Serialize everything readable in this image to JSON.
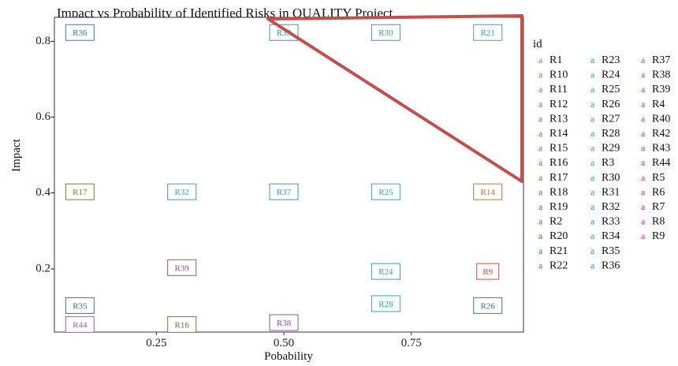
{
  "chart_data": {
    "type": "scatter",
    "title": "Impact vs Probability of Identified Risks in QUALITY Project",
    "xlabel": "Pobability",
    "ylabel": "Impact",
    "xlim": [
      0.05,
      0.97
    ],
    "ylim": [
      0.03,
      0.86
    ],
    "x_ticks": [
      {
        "value": 0.25,
        "label": "0.25"
      },
      {
        "value": 0.5,
        "label": "0.50"
      },
      {
        "value": 0.75,
        "label": "0.75"
      }
    ],
    "y_ticks": [
      {
        "value": 0.2,
        "label": "0.2-"
      },
      {
        "value": 0.4,
        "label": "0.4-"
      },
      {
        "value": 0.6,
        "label": "0.6-"
      },
      {
        "value": 0.8,
        "label": "0.8-"
      }
    ],
    "grid": false,
    "legend_title": "id",
    "legend_placement": "right",
    "legend_key_glyph": "a",
    "points": [
      {
        "id": "R36",
        "x": 0.1,
        "y": 0.82,
        "color": "#2f7fb6"
      },
      {
        "id": "R33",
        "x": 0.5,
        "y": 0.82,
        "color": "#3a8fc0"
      },
      {
        "id": "R30",
        "x": 0.7,
        "y": 0.82,
        "color": "#3b96c2"
      },
      {
        "id": "R21",
        "x": 0.9,
        "y": 0.82,
        "color": "#3aa3b0"
      },
      {
        "id": "R17",
        "x": 0.1,
        "y": 0.4,
        "color": "#6b7f3a"
      },
      {
        "id": "R32",
        "x": 0.3,
        "y": 0.4,
        "color": "#3a9ad0"
      },
      {
        "id": "R37",
        "x": 0.5,
        "y": 0.4,
        "color": "#3a93c8"
      },
      {
        "id": "R25",
        "x": 0.7,
        "y": 0.4,
        "color": "#35a5b4"
      },
      {
        "id": "R14",
        "x": 0.9,
        "y": 0.4,
        "color": "#c0703a"
      },
      {
        "id": "R39",
        "x": 0.3,
        "y": 0.2,
        "color": "#8a4fae"
      },
      {
        "id": "R24",
        "x": 0.7,
        "y": 0.19,
        "color": "#2fa2aa"
      },
      {
        "id": "R9",
        "x": 0.9,
        "y": 0.19,
        "color": "#d04a3a"
      },
      {
        "id": "R35",
        "x": 0.1,
        "y": 0.1,
        "color": "#2f6fa0"
      },
      {
        "id": "R28",
        "x": 0.7,
        "y": 0.105,
        "color": "#33a6b0"
      },
      {
        "id": "R26",
        "x": 0.9,
        "y": 0.1,
        "color": "#2f7f94"
      },
      {
        "id": "R44",
        "x": 0.1,
        "y": 0.05,
        "color": "#c44ac8"
      },
      {
        "id": "R16",
        "x": 0.3,
        "y": 0.05,
        "color": "#6f7a3a"
      },
      {
        "id": "R38",
        "x": 0.5,
        "y": 0.055,
        "color": "#8a4fae"
      }
    ],
    "legend_columns": [
      [
        {
          "label": "R1",
          "color": "#d2702a"
        },
        {
          "label": "R10",
          "color": "#cc6a2a"
        },
        {
          "label": "R11",
          "color": "#c06a2a"
        },
        {
          "label": "R12",
          "color": "#b86a2a"
        },
        {
          "label": "R13",
          "color": "#a86a2a"
        },
        {
          "label": "R14",
          "color": "#a06f2a"
        },
        {
          "label": "R15",
          "color": "#8a7a2a"
        },
        {
          "label": "R16",
          "color": "#7c7c2a"
        },
        {
          "label": "R17",
          "color": "#6f7f2a"
        },
        {
          "label": "R18",
          "color": "#5f842a"
        },
        {
          "label": "R19",
          "color": "#4f8a2a"
        },
        {
          "label": "R2",
          "color": "#4a8a3a"
        },
        {
          "label": "R20",
          "color": "#3f8a3f"
        },
        {
          "label": "R21",
          "color": "#3a8a4a"
        },
        {
          "label": "R22",
          "color": "#3a8a5a"
        }
      ],
      [
        {
          "label": "R23",
          "color": "#2aa0a0"
        },
        {
          "label": "R24",
          "color": "#2aa0a8"
        },
        {
          "label": "R25",
          "color": "#2aa3b0"
        },
        {
          "label": "R26",
          "color": "#2aa3b8"
        },
        {
          "label": "R27",
          "color": "#2aa0bf"
        },
        {
          "label": "R28",
          "color": "#2a9fc5"
        },
        {
          "label": "R29",
          "color": "#2a9ccb"
        },
        {
          "label": "R3",
          "color": "#2a9ad0"
        },
        {
          "label": "R30",
          "color": "#2a98d3"
        },
        {
          "label": "R31",
          "color": "#2a95d5"
        },
        {
          "label": "R32",
          "color": "#2a92d6"
        },
        {
          "label": "R33",
          "color": "#3a8fd6"
        },
        {
          "label": "R34",
          "color": "#3a8bd6"
        },
        {
          "label": "R35",
          "color": "#3a87d3"
        },
        {
          "label": "R36",
          "color": "#3a84d0"
        }
      ],
      [
        {
          "label": "R37",
          "color": "#7a5fc0"
        },
        {
          "label": "R38",
          "color": "#8255c0"
        },
        {
          "label": "R39",
          "color": "#8a4fbe"
        },
        {
          "label": "R4",
          "color": "#9248bc"
        },
        {
          "label": "R40",
          "color": "#9a44ba"
        },
        {
          "label": "R42",
          "color": "#a240b8"
        },
        {
          "label": "R43",
          "color": "#aa3cb6"
        },
        {
          "label": "R44",
          "color": "#b238b4"
        },
        {
          "label": "R5",
          "color": "#ba34b2"
        },
        {
          "label": "R6",
          "color": "#c030b0"
        },
        {
          "label": "R7",
          "color": "#c42cac"
        },
        {
          "label": "R8",
          "color": "#c82aa8"
        },
        {
          "label": "R9",
          "color": "#cc28a4"
        }
      ]
    ],
    "annotation": {
      "shape": "triangle",
      "color": "#c0504d"
    }
  }
}
